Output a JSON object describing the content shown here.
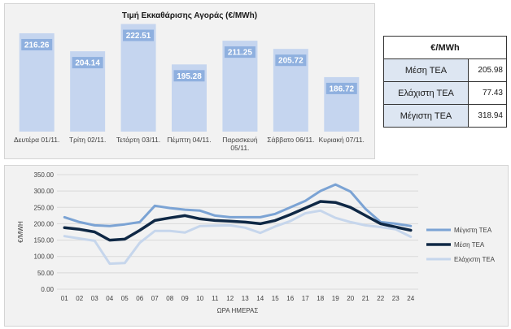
{
  "chart_data": [
    {
      "type": "bar",
      "title": "Τιμή Εκκαθάρισης Αγοράς (€/MWh)",
      "categories": [
        "Δευτέρα 01/11.",
        "Τρίτη 02/11.",
        "Τετάρτη 03/11.",
        "Πέμπτη 04/11.",
        "Παρασκευή 05/11.",
        "Σάββατο 06/11.",
        "Κυριακή 07/11."
      ],
      "values": [
        216.26,
        204.14,
        222.51,
        195.28,
        211.25,
        205.72,
        186.72
      ],
      "value_labels": [
        "216.26",
        "204.14",
        "222.51",
        "195.28",
        "211.25",
        "205.72",
        "186.72"
      ],
      "color": "#c5d5ef",
      "label_color": "#8fb0df"
    },
    {
      "type": "line",
      "xlabel": "ΩΡΑ ΗΜΕΡΑΣ",
      "ylabel": "€/MWH",
      "x": [
        "01",
        "02",
        "03",
        "04",
        "05",
        "06",
        "07",
        "08",
        "09",
        "10",
        "11",
        "12",
        "13",
        "14",
        "15",
        "16",
        "17",
        "18",
        "19",
        "20",
        "21",
        "22",
        "23",
        "24"
      ],
      "ylim": [
        0,
        350
      ],
      "yticks": [
        "0.00",
        "50.00",
        "100.00",
        "150.00",
        "200.00",
        "250.00",
        "300.00",
        "350.00"
      ],
      "legend_position": "right",
      "series": [
        {
          "name": "Μέγιστη ΤΕΑ",
          "color": "#7ba3d4",
          "values": [
            220,
            205,
            195,
            193,
            198,
            205,
            255,
            248,
            243,
            240,
            225,
            220,
            220,
            220,
            230,
            250,
            270,
            300,
            320,
            298,
            245,
            205,
            200,
            193
          ]
        },
        {
          "name": "Μέση ΤΕΑ",
          "color": "#0f2845",
          "values": [
            188,
            183,
            175,
            150,
            153,
            180,
            210,
            218,
            225,
            215,
            210,
            208,
            205,
            200,
            210,
            228,
            248,
            268,
            265,
            250,
            225,
            200,
            190,
            180
          ]
        },
        {
          "name": "Ελάχιστη ΤΕΑ",
          "color": "#c6d6ec",
          "values": [
            162,
            155,
            148,
            78,
            80,
            142,
            178,
            178,
            173,
            193,
            194,
            195,
            188,
            172,
            192,
            208,
            232,
            240,
            218,
            205,
            195,
            190,
            183,
            160
          ]
        }
      ]
    }
  ],
  "stats_table": {
    "header": "€/MWh",
    "rows": [
      {
        "label": "Μέση ΤΕΑ",
        "value": "205.98"
      },
      {
        "label": "Ελάχιστη ΤΕΑ",
        "value": "77.43"
      },
      {
        "label": "Μέγιστη ΤΕΑ",
        "value": "318.94"
      }
    ]
  }
}
